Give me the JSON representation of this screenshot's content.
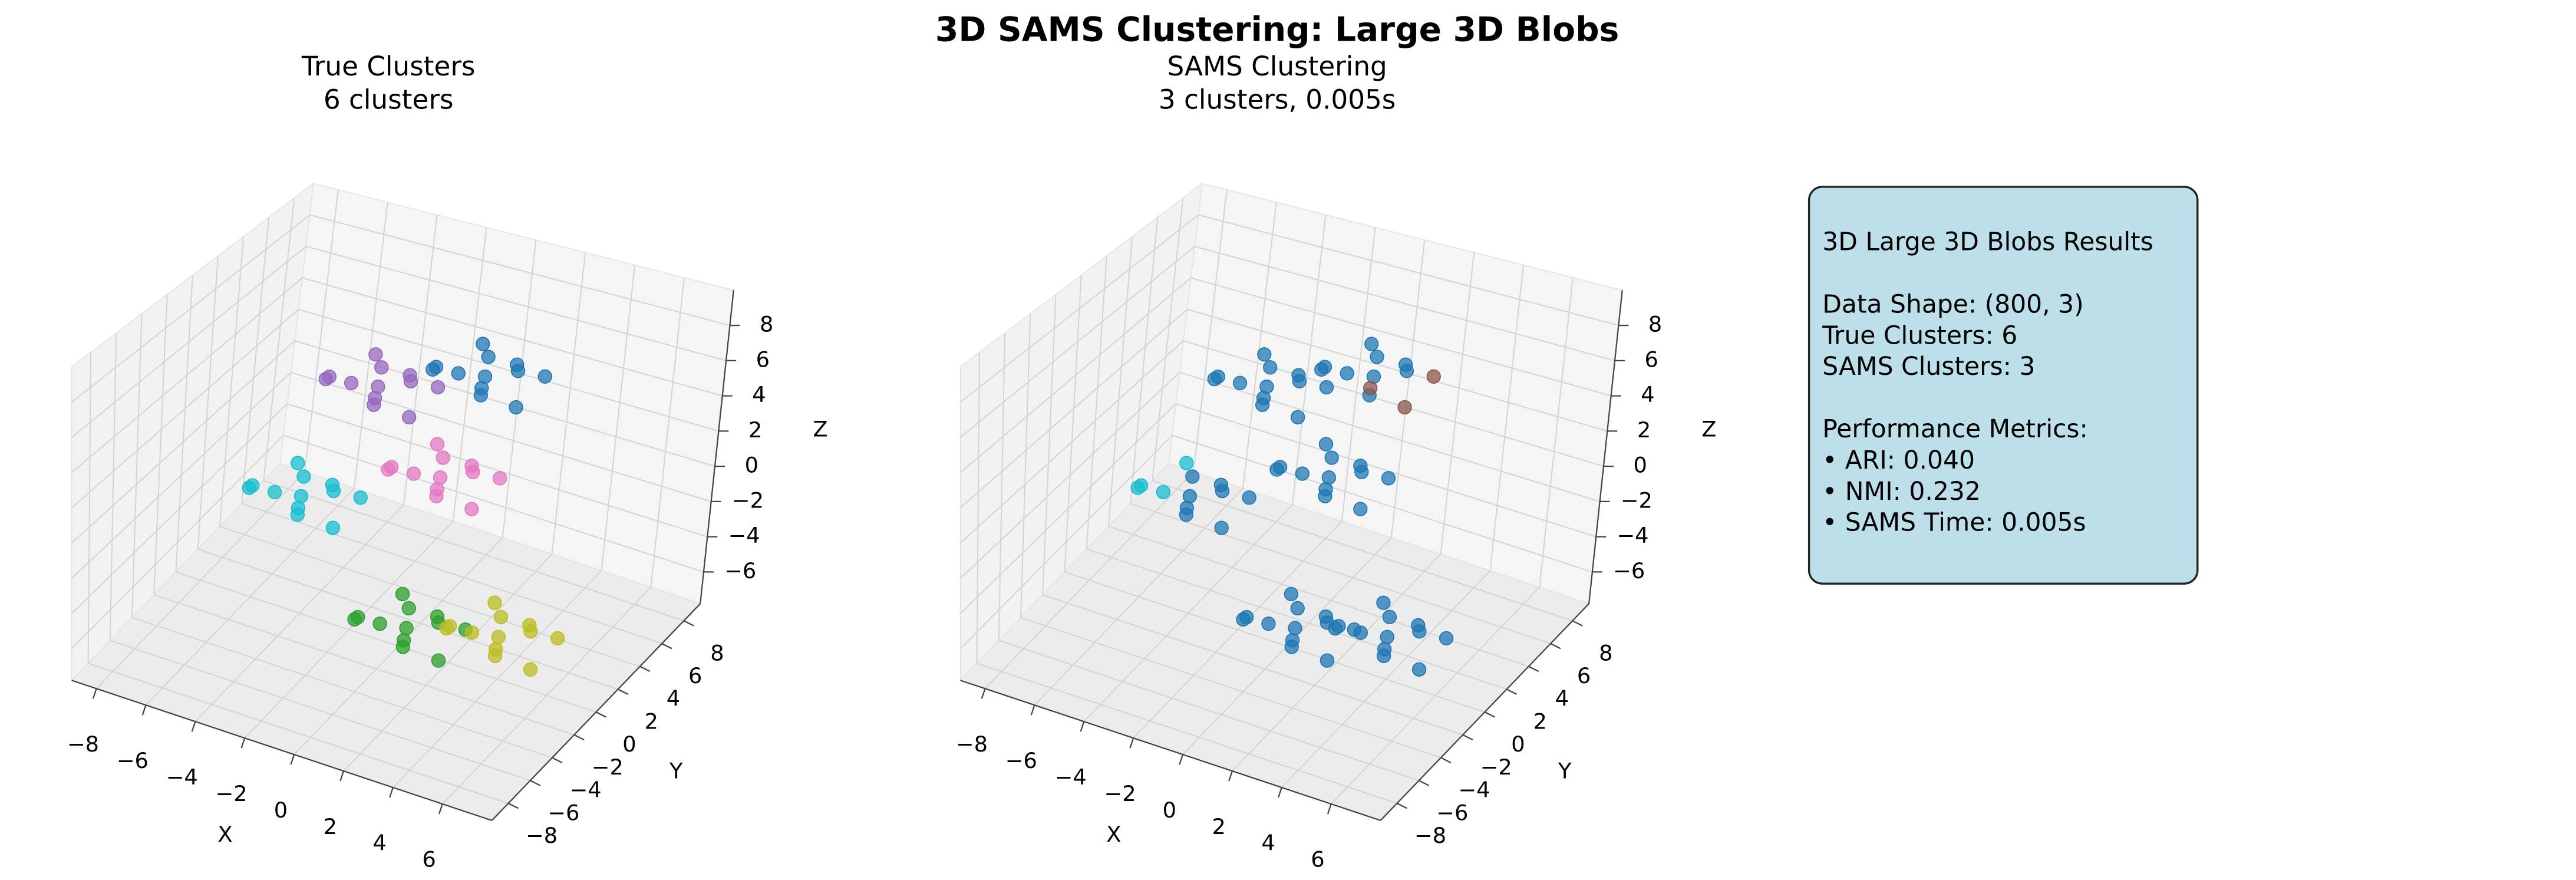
{
  "title": "3D SAMS Clustering: Large 3D Blobs",
  "chart_data": [
    {
      "type": "scatter3d",
      "title": "True Clusters",
      "subtitle": "6 clusters",
      "xlabel": "X",
      "ylabel": "Y",
      "zlabel": "Z",
      "xlim": [
        -9,
        8
      ],
      "ylim": [
        -9.5,
        9.5
      ],
      "zlim": [
        -7.8,
        10
      ],
      "xticks": [
        {
          "value": -8,
          "label": "−8"
        },
        {
          "value": -6,
          "label": "−6"
        },
        {
          "value": -4,
          "label": "−4"
        },
        {
          "value": -2,
          "label": "−2"
        },
        0,
        2,
        4,
        6
      ],
      "yticks": [
        {
          "value": -8,
          "label": "−8"
        },
        {
          "value": -6,
          "label": "−6"
        },
        {
          "value": -4,
          "label": "−4"
        },
        {
          "value": -2,
          "label": "−2"
        },
        0,
        2,
        4,
        6,
        8
      ],
      "zticks": [
        {
          "value": -6,
          "label": "−6"
        },
        {
          "value": -4,
          "label": "−4"
        },
        {
          "value": -2,
          "label": "−2"
        },
        0,
        2,
        4,
        6,
        8
      ],
      "series": [
        {
          "color": "#1f77b4",
          "x": [
            2.0,
            -0.2,
            1.4,
            0.4,
            2.5,
            0.8,
            -0.6,
            1.7,
            1.0,
            3.1,
            -1.0,
            1.3
          ],
          "y": [
            4.5,
            4.3,
            2.9,
            4.9,
            3.6,
            4.2,
            3.2,
            5.3,
            4.0,
            4.6,
            3.8,
            3.5
          ],
          "z": [
            6.6,
            5.3,
            6.0,
            6.9,
            4.9,
            4.5,
            6.2,
            5.6,
            5.8,
            6.3,
            5.5,
            7.4
          ]
        },
        {
          "color": "#9467bd",
          "x": [
            -2.2,
            -4.4,
            -2.8,
            -3.8,
            -1.7,
            -3.4,
            -4.8,
            -2.5,
            -3.2,
            -1.1,
            -5.2,
            -2.9
          ],
          "y": [
            4.5,
            4.3,
            2.9,
            4.9,
            3.6,
            4.2,
            3.2,
            5.3,
            4.0,
            4.6,
            3.8,
            3.5
          ],
          "z": [
            4.2,
            2.9,
            3.6,
            4.5,
            2.5,
            2.1,
            3.8,
            3.2,
            3.4,
            3.9,
            3.1,
            5.0
          ]
        },
        {
          "color": "#17becf",
          "x": [
            -2.3,
            -4.5,
            -2.9,
            -3.9,
            -1.8,
            -3.5,
            -4.9,
            -2.6,
            -3.3,
            -1.2,
            -5.3,
            -3.0
          ],
          "y": [
            -1.5,
            -1.7,
            -3.1,
            -1.1,
            -2.4,
            -1.8,
            -2.8,
            -0.7,
            -2.0,
            -1.4,
            -2.2,
            -2.5
          ],
          "z": [
            1.5,
            0.2,
            0.9,
            1.8,
            -0.2,
            -0.6,
            1.1,
            0.5,
            0.7,
            1.2,
            0.4,
            2.3
          ]
        },
        {
          "color": "#e377c2",
          "x": [
            2.3,
            0.1,
            1.7,
            0.7,
            2.8,
            1.1,
            -0.3,
            2.0,
            1.3,
            3.4,
            -0.7,
            1.6
          ],
          "y": [
            0.5,
            0.3,
            -1.1,
            0.9,
            -0.4,
            0.2,
            -0.8,
            1.3,
            0,
            0.6,
            -0.2,
            -0.5
          ],
          "z": [
            3.4,
            2.1,
            2.8,
            3.7,
            1.7,
            1.3,
            3.0,
            2.4,
            2.6,
            3.1,
            2.3,
            4.2
          ]
        },
        {
          "color": "#2ca02c",
          "x": [
            3.0,
            0.8,
            2.4,
            1.4,
            3.5,
            1.8,
            0.4,
            2.7,
            2.0,
            4.1,
            0.0,
            2.3
          ],
          "y": [
            -3.5,
            -3.7,
            -5.1,
            -3.1,
            -4.4,
            -3.8,
            -4.8,
            -2.7,
            -4.0,
            -3.4,
            -4.2,
            -4.5
          ],
          "z": [
            -2.4,
            -3.7,
            -3.0,
            -2.1,
            -4.1,
            -4.5,
            -2.8,
            -3.4,
            -3.2,
            -2.7,
            -3.5,
            -1.6
          ]
        },
        {
          "color": "#bcbd22",
          "x": [
            6.7,
            4.5,
            6.1,
            5.1,
            7.2,
            5.5,
            4.1,
            6.4,
            5.7,
            7.8,
            3.7,
            6.0
          ],
          "y": [
            -3.5,
            -3.7,
            -5.1,
            -3.1,
            -4.4,
            -3.8,
            -4.8,
            -2.7,
            -4.0,
            -3.4,
            -4.2,
            -4.5
          ],
          "z": [
            -1.2,
            -2.5,
            -1.8,
            -0.9,
            -2.9,
            -3.3,
            -1.6,
            -2.2,
            -2.0,
            -1.5,
            -2.3,
            -0.4
          ]
        }
      ]
    },
    {
      "type": "scatter3d",
      "title": "SAMS Clustering",
      "subtitle": "3 clusters, 0.005s",
      "xlabel": "X",
      "ylabel": "Y",
      "zlabel": "Z",
      "xlim": [
        -9,
        8
      ],
      "ylim": [
        -9.5,
        9.5
      ],
      "zlim": [
        -7.8,
        10
      ],
      "xticks": [
        {
          "value": -8,
          "label": "−8"
        },
        {
          "value": -6,
          "label": "−6"
        },
        {
          "value": -4,
          "label": "−4"
        },
        {
          "value": -2,
          "label": "−2"
        },
        0,
        2,
        4,
        6
      ],
      "yticks": [
        {
          "value": -8,
          "label": "−8"
        },
        {
          "value": -6,
          "label": "−6"
        },
        {
          "value": -4,
          "label": "−4"
        },
        {
          "value": -2,
          "label": "−2"
        },
        0,
        2,
        4,
        6,
        8
      ],
      "zticks": [
        {
          "value": -6,
          "label": "−6"
        },
        {
          "value": -4,
          "label": "−4"
        },
        {
          "value": -2,
          "label": "−2"
        },
        0,
        2,
        4,
        6,
        8
      ],
      "series": [
        {
          "color": "#1f77b4",
          "x": [
            2.0,
            -0.2,
            0.4,
            0.8,
            -0.6,
            1.7,
            1.0,
            -1.0,
            1.3,
            -2.2,
            -4.4,
            -2.8,
            -3.8,
            -1.7,
            -3.4,
            -4.8,
            -2.5,
            -3.2,
            -1.1,
            -5.2,
            -2.9,
            -2.3,
            -2.9,
            -1.8,
            -3.5,
            -2.6,
            -3.3,
            -1.2,
            -3.0,
            2.3,
            0.1,
            1.7,
            0.7,
            2.8,
            1.1,
            -0.3,
            2.0,
            1.3,
            3.4,
            -0.7,
            1.6,
            3.0,
            0.8,
            2.4,
            1.4,
            3.5,
            1.8,
            0.4,
            2.7,
            2.0,
            4.1,
            0.0,
            2.3,
            6.7,
            4.5,
            6.1,
            5.1,
            7.2,
            5.5,
            4.1,
            6.4,
            5.7,
            7.8,
            3.7,
            6.0
          ],
          "y": [
            4.5,
            4.3,
            4.9,
            4.2,
            3.2,
            5.3,
            4.0,
            3.8,
            3.5,
            4.5,
            4.3,
            2.9,
            4.9,
            3.6,
            4.2,
            3.2,
            5.3,
            4.0,
            4.6,
            3.8,
            3.5,
            -1.5,
            -3.1,
            -2.4,
            -1.8,
            -0.7,
            -2.0,
            -1.4,
            -2.5,
            0.5,
            0.3,
            -1.1,
            0.9,
            -0.4,
            0.2,
            -0.8,
            1.3,
            0,
            0.6,
            -0.2,
            -0.5,
            -3.5,
            -3.7,
            -5.1,
            -3.1,
            -4.4,
            -3.8,
            -4.8,
            -2.7,
            -4.0,
            -3.4,
            -4.2,
            -4.5,
            -3.5,
            -3.7,
            -5.1,
            -3.1,
            -4.4,
            -3.8,
            -4.8,
            -2.7,
            -4.0,
            -3.4,
            -4.2,
            -4.5
          ],
          "z": [
            6.6,
            5.3,
            6.9,
            4.5,
            6.2,
            5.6,
            5.8,
            5.5,
            7.4,
            4.2,
            2.9,
            3.6,
            4.5,
            2.5,
            2.1,
            3.8,
            3.2,
            3.4,
            3.9,
            3.1,
            5.0,
            1.5,
            0.9,
            -0.2,
            -0.6,
            0.5,
            0.7,
            1.2,
            2.3,
            3.4,
            2.1,
            2.8,
            3.7,
            1.7,
            1.3,
            3.0,
            2.4,
            2.6,
            3.1,
            2.3,
            4.2,
            -2.4,
            -3.7,
            -3.0,
            -2.1,
            -4.1,
            -4.5,
            -2.8,
            -3.4,
            -3.2,
            -2.7,
            -3.5,
            -1.6,
            -1.2,
            -2.5,
            -1.8,
            -0.9,
            -2.9,
            -3.3,
            -1.6,
            -2.2,
            -2.0,
            -1.5,
            -2.3,
            -0.4
          ]
        },
        {
          "color": "#17becf",
          "x": [
            -4.5,
            -3.9,
            -4.9,
            -5.3
          ],
          "y": [
            -1.7,
            -1.1,
            -2.8,
            -2.2
          ],
          "z": [
            0.2,
            1.8,
            1.1,
            0.4
          ]
        },
        {
          "color": "#8c564b",
          "x": [
            1.4,
            2.5,
            3.1
          ],
          "y": [
            2.9,
            3.6,
            4.6
          ],
          "z": [
            6.0,
            4.9,
            6.3
          ]
        }
      ]
    }
  ],
  "info_box": {
    "sections": [
      [
        "3D Large 3D Blobs Results"
      ],
      [
        "Data Shape: (800, 3)",
        "True Clusters: 6",
        "SAMS Clusters: 3"
      ],
      [
        "Performance Metrics:",
        "• ARI: 0.040",
        "• NMI: 0.232",
        "• SAMS Time: 0.005s"
      ]
    ]
  }
}
